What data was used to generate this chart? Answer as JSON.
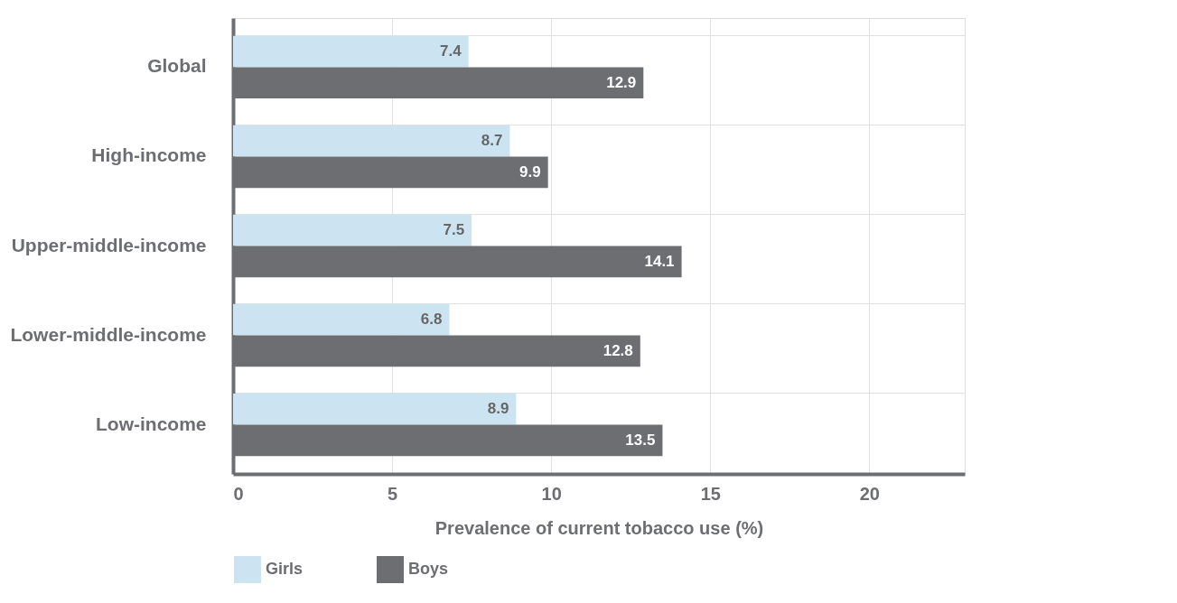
{
  "chart_data": {
    "type": "bar",
    "orientation": "horizontal",
    "xlabel": "Prevalence of current tobacco use (%)",
    "categories": [
      "Global",
      "High-income",
      "Upper-middle-income",
      "Lower-middle-income",
      "Low-income"
    ],
    "series": [
      {
        "name": "Girls",
        "color": "#cce4f2",
        "values": [
          7.4,
          8.7,
          7.5,
          6.8,
          8.9
        ]
      },
      {
        "name": "Boys",
        "color": "#6d6e71",
        "values": [
          12.9,
          9.9,
          14.1,
          12.8,
          13.5
        ]
      }
    ],
    "xlim": [
      0,
      23
    ],
    "xticks": [
      0,
      5,
      10,
      15,
      20
    ],
    "grid": true,
    "legend": "bottom",
    "data_labels": true
  }
}
